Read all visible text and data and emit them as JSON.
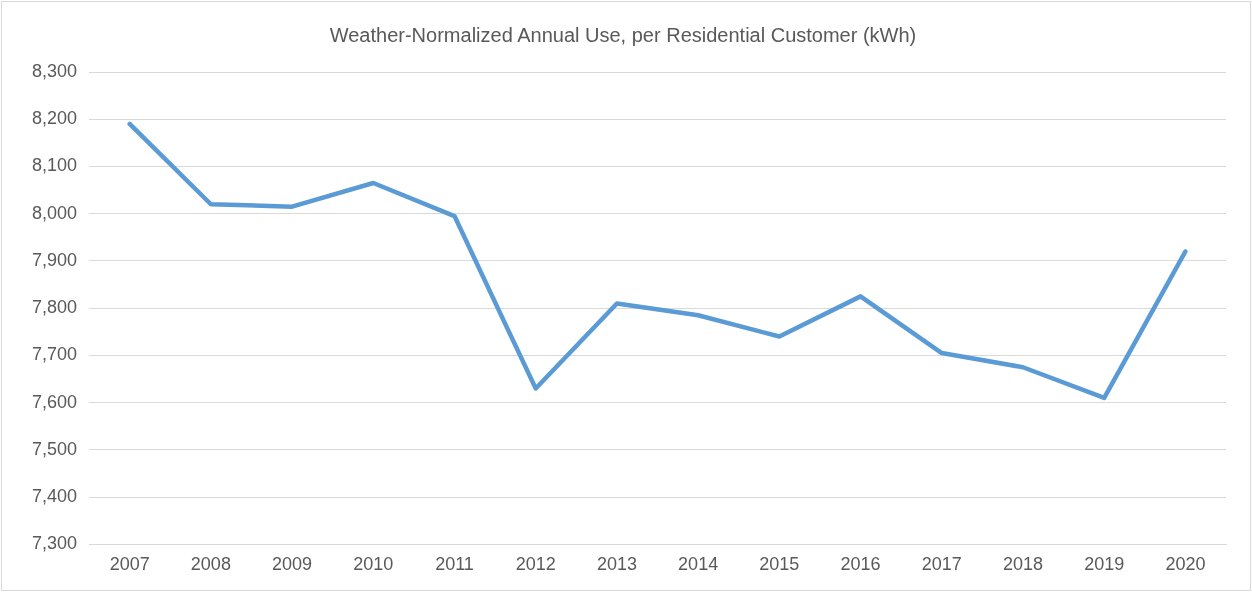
{
  "chart_data": {
    "type": "line",
    "title": "Weather-Normalized Annual Use, per Residential Customer (kWh)",
    "categories": [
      "2007",
      "2008",
      "2009",
      "2010",
      "2011",
      "2012",
      "2013",
      "2014",
      "2015",
      "2016",
      "2017",
      "2018",
      "2019",
      "2020"
    ],
    "series": [
      {
        "color": "#5b9bd5",
        "values": [
          8190,
          8020,
          8015,
          8065,
          7995,
          7630,
          7810,
          7785,
          7740,
          7825,
          7705,
          7675,
          7610,
          7920
        ]
      }
    ],
    "ylim": [
      7300,
      8300
    ],
    "yticks": [
      {
        "value": 7300,
        "label": "7,300"
      },
      {
        "value": 7400,
        "label": "7,400"
      },
      {
        "value": 7500,
        "label": "7,500"
      },
      {
        "value": 7600,
        "label": "7,600"
      },
      {
        "value": 7700,
        "label": "7,700"
      },
      {
        "value": 7800,
        "label": "7,800"
      },
      {
        "value": 7900,
        "label": "7,900"
      },
      {
        "value": 8000,
        "label": "8,000"
      },
      {
        "value": 8100,
        "label": "8,100"
      },
      {
        "value": 8200,
        "label": "8,200"
      },
      {
        "value": 8300,
        "label": "8,300"
      }
    ],
    "grid": "y",
    "legend": false,
    "marker": "none",
    "line_style": "solid"
  }
}
